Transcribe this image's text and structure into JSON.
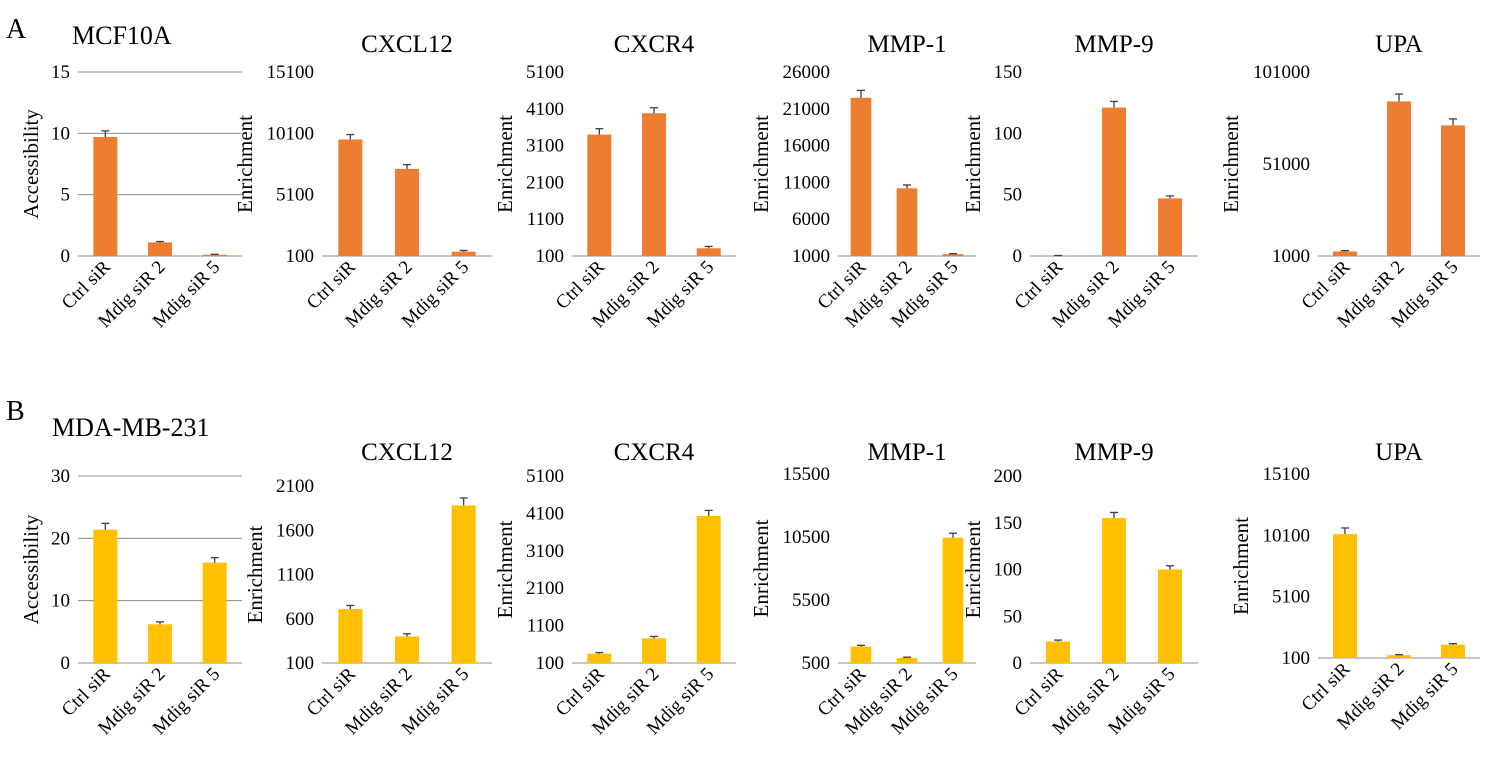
{
  "panels": [
    {
      "letter": "A",
      "cell_line": "MCF10A",
      "color": "#ED7D31"
    },
    {
      "letter": "B",
      "cell_line": "MDA-MB-231",
      "color": "#FFC000"
    }
  ],
  "chart_data": [
    {
      "id": "A1",
      "panel": "A",
      "type": "bar",
      "title": "",
      "ylabel": "Accessibility",
      "categories": [
        "Ctrl siR",
        "Mdig siR 2",
        "Mdig siR 5"
      ],
      "values": [
        9.7,
        1.1,
        0.1
      ],
      "errors": [
        0.5,
        0.08,
        0.04
      ],
      "ylim": [
        0,
        15
      ],
      "yticks": [
        0,
        5,
        10,
        15
      ],
      "grid": true,
      "color": "#ED7D31"
    },
    {
      "id": "A2",
      "panel": "A",
      "type": "bar",
      "title": "CXCL12",
      "ylabel": "Enrichment",
      "categories": [
        "Ctrl siR",
        "Mdig siR 2",
        "Mdig siR 5"
      ],
      "values": [
        9600,
        7200,
        450
      ],
      "errors": [
        400,
        350,
        100
      ],
      "ylim": [
        100,
        15100
      ],
      "yticks": [
        100,
        5100,
        10100,
        15100
      ],
      "grid": false,
      "color": "#ED7D31"
    },
    {
      "id": "A3",
      "panel": "A",
      "type": "bar",
      "title": "CXCR4",
      "ylabel": "Enrichment",
      "categories": [
        "Ctrl siR",
        "Mdig siR 2",
        "Mdig siR 5"
      ],
      "values": [
        3400,
        3980,
        310
      ],
      "errors": [
        160,
        150,
        50
      ],
      "ylim": [
        100,
        5100
      ],
      "yticks": [
        100,
        1100,
        2100,
        3100,
        4100,
        5100
      ],
      "grid": false,
      "color": "#ED7D31"
    },
    {
      "id": "A4",
      "panel": "A",
      "type": "bar",
      "title": "MMP-1",
      "ylabel": "Enrichment",
      "categories": [
        "Ctrl siR",
        "Mdig siR 2",
        "Mdig siR 5"
      ],
      "values": [
        22500,
        10200,
        1250
      ],
      "errors": [
        1000,
        450,
        70
      ],
      "ylim": [
        1000,
        26000
      ],
      "yticks": [
        1000,
        6000,
        11000,
        16000,
        21000,
        26000
      ],
      "grid": false,
      "color": "#ED7D31"
    },
    {
      "id": "A5",
      "panel": "A",
      "type": "bar",
      "title": "MMP-9",
      "ylabel": "Enrichment",
      "categories": [
        "Ctrl siR",
        "Mdig siR 2",
        "Mdig siR 5"
      ],
      "values": [
        0.3,
        121,
        47
      ],
      "errors": [
        0.1,
        5,
        2
      ],
      "ylim": [
        0,
        150
      ],
      "yticks": [
        0,
        50,
        100,
        150
      ],
      "grid": false,
      "color": "#ED7D31"
    },
    {
      "id": "A6",
      "panel": "A",
      "type": "bar",
      "title": "UPA",
      "ylabel": "Enrichment",
      "categories": [
        "Ctrl siR",
        "Mdig siR 2",
        "Mdig siR 5"
      ],
      "values": [
        3500,
        85000,
        72000
      ],
      "errors": [
        400,
        4000,
        3500
      ],
      "ylim": [
        1000,
        101000
      ],
      "yticks": [
        1000,
        51000,
        101000
      ],
      "grid": false,
      "color": "#ED7D31"
    },
    {
      "id": "B1",
      "panel": "B",
      "type": "bar",
      "title": "",
      "ylabel": "Accessibility",
      "categories": [
        "Ctrl siR",
        "Mdig siR 2",
        "Mdig siR 5"
      ],
      "values": [
        21.4,
        6.2,
        16.1
      ],
      "errors": [
        1.0,
        0.4,
        0.8
      ],
      "ylim": [
        0,
        30
      ],
      "yticks": [
        0,
        10,
        20,
        30
      ],
      "grid": true,
      "color": "#FFC000"
    },
    {
      "id": "B2",
      "panel": "B",
      "type": "bar",
      "title": "CXCL12",
      "ylabel": "Enrichment",
      "categories": [
        "Ctrl siR",
        "Mdig siR 2",
        "Mdig siR 5"
      ],
      "values": [
        710,
        400,
        1880
      ],
      "errors": [
        40,
        30,
        85
      ],
      "ylim": [
        100,
        2100
      ],
      "yticks": [
        100,
        600,
        1100,
        1600,
        2100
      ],
      "grid": false,
      "color": "#FFC000"
    },
    {
      "id": "B3",
      "panel": "B",
      "type": "bar",
      "title": "CXCR4",
      "ylabel": "Enrichment",
      "categories": [
        "Ctrl siR",
        "Mdig siR 2",
        "Mdig siR 5"
      ],
      "values": [
        350,
        760,
        4030
      ],
      "errors": [
        30,
        50,
        150
      ],
      "ylim": [
        100,
        5100
      ],
      "yticks": [
        100,
        1100,
        2100,
        3100,
        4100,
        5100
      ],
      "grid": false,
      "color": "#FFC000"
    },
    {
      "id": "B4",
      "panel": "B",
      "type": "bar",
      "title": "MMP-1",
      "ylabel": "Enrichment",
      "categories": [
        "Ctrl siR",
        "Mdig siR 2",
        "Mdig siR 5"
      ],
      "values": [
        1800,
        900,
        10450
      ],
      "errors": [
        100,
        60,
        350
      ],
      "ylim": [
        500,
        15500
      ],
      "yticks": [
        500,
        5500,
        10500,
        15500
      ],
      "grid": false,
      "color": "#FFC000"
    },
    {
      "id": "B5",
      "panel": "B",
      "type": "bar",
      "title": "MMP-9",
      "ylabel": "Enrichment",
      "categories": [
        "Ctrl siR",
        "Mdig siR 2",
        "Mdig siR 5"
      ],
      "values": [
        23,
        155,
        100
      ],
      "errors": [
        1.5,
        6,
        4
      ],
      "ylim": [
        0,
        200
      ],
      "yticks": [
        0,
        50,
        100,
        150,
        200
      ],
      "grid": false,
      "color": "#FFC000"
    },
    {
      "id": "B6",
      "panel": "B",
      "type": "bar",
      "title": "UPA",
      "ylabel": "Enrichment",
      "categories": [
        "Ctrl siR",
        "Mdig siR 2",
        "Mdig siR 5"
      ],
      "values": [
        10200,
        330,
        1190
      ],
      "errors": [
        500,
        40,
        80
      ],
      "ylim": [
        100,
        15100
      ],
      "yticks": [
        100,
        5100,
        10100,
        15100
      ],
      "grid": false,
      "color": "#FFC000"
    }
  ]
}
